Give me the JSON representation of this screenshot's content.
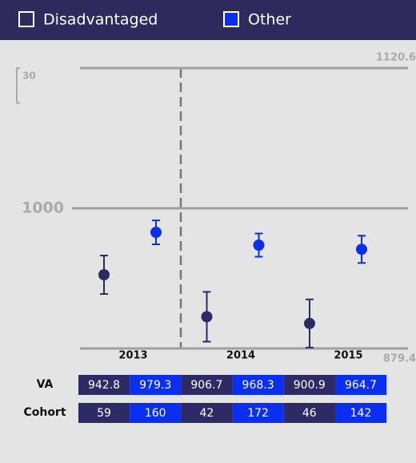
{
  "chart_data": {
    "type": "scatter",
    "categories": [
      "2013",
      "2014",
      "2015"
    ],
    "series": [
      {
        "name": "Disadvantaged",
        "color": "#2e2a66",
        "values": [
          942.8,
          906.7,
          900.9
        ],
        "errors": [
          16.5,
          21.4,
          20.7
        ],
        "cohort": [
          59,
          42,
          46
        ]
      },
      {
        "name": "Other",
        "color": "#0a2ff0",
        "values": [
          979.3,
          968.3,
          964.7
        ],
        "errors": [
          10.3,
          10.0,
          11.7
        ],
        "cohort": [
          160,
          172,
          142
        ]
      }
    ],
    "ylim": [
      879.4,
      1120.6
    ],
    "yticks": [
      879.4,
      1000,
      1120.6
    ],
    "scale_bar": 30,
    "table_rows": [
      "VA",
      "Cohort"
    ],
    "grid": true
  }
}
